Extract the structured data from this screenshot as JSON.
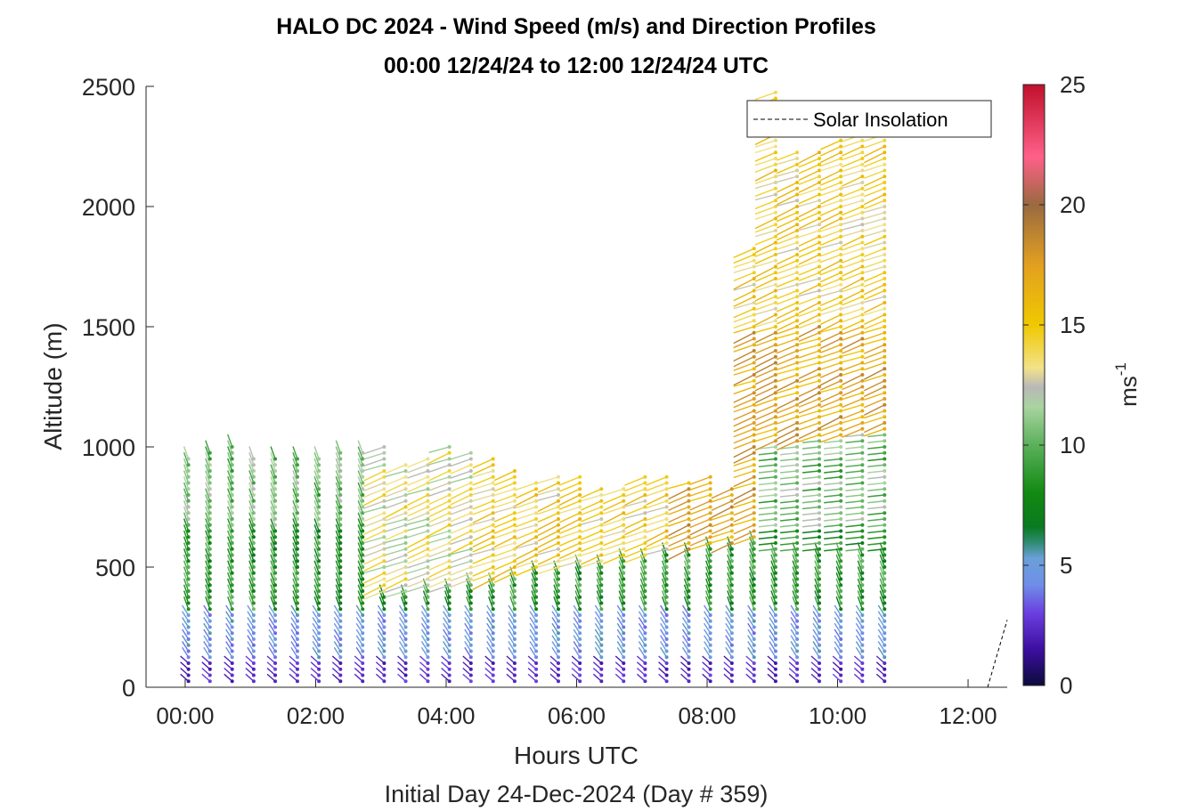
{
  "chart_data": {
    "type": "wind-barb-profile",
    "title_line1": "HALO DC 2024 - Wind Speed (m/s) and Direction Profiles",
    "title_line2": "00:00 12/24/24 to 12:00 12/24/24  UTC",
    "xlabel": "Hours UTC",
    "xlabel2": "Initial Day 24-Dec-2024 (Day # 359)",
    "ylabel": "Altitude (m)",
    "x_unit": "hours",
    "xlim": [
      -0.6,
      12.6
    ],
    "ylim": [
      0,
      2500
    ],
    "x_ticks": [
      0,
      2,
      4,
      6,
      8,
      10,
      12
    ],
    "x_tick_labels": [
      "00:00",
      "02:00",
      "04:00",
      "06:00",
      "08:00",
      "10:00",
      "12:00"
    ],
    "y_ticks": [
      0,
      500,
      1000,
      1500,
      2000,
      2500
    ],
    "y_tick_labels": [
      "0",
      "500",
      "1000",
      "1500",
      "2000",
      "2500"
    ],
    "colorbar": {
      "label_base": "ms",
      "label_exp": "-1",
      "range": [
        0,
        25
      ],
      "ticks": [
        0,
        5,
        10,
        15,
        20,
        25
      ],
      "tick_labels": [
        "0",
        "5",
        "10",
        "15",
        "20",
        "25"
      ],
      "stops": [
        {
          "v": 0,
          "c": "#0b0b3c"
        },
        {
          "v": 1.5,
          "c": "#3d0fa0"
        },
        {
          "v": 3,
          "c": "#6a3ee0"
        },
        {
          "v": 4.2,
          "c": "#6f8fe8"
        },
        {
          "v": 5.3,
          "c": "#6aa0d8"
        },
        {
          "v": 6,
          "c": "#2a8a6a"
        },
        {
          "v": 6.6,
          "c": "#0a7a20"
        },
        {
          "v": 8,
          "c": "#118a11"
        },
        {
          "v": 10,
          "c": "#5bb05b"
        },
        {
          "v": 11.6,
          "c": "#a9d4a0"
        },
        {
          "v": 12.4,
          "c": "#b8b8b8"
        },
        {
          "v": 13.2,
          "c": "#f2e28a"
        },
        {
          "v": 15,
          "c": "#f0c800"
        },
        {
          "v": 17.5,
          "c": "#e2a020"
        },
        {
          "v": 20,
          "c": "#9a6a40"
        },
        {
          "v": 22,
          "c": "#ff6088"
        },
        {
          "v": 25,
          "c": "#c0102c"
        }
      ]
    },
    "legend": {
      "label": "Solar Insolation",
      "placement": "top-right",
      "line_style": "dashed"
    },
    "insolation": {
      "x": [
        -0.6,
        12.3,
        12.6
      ],
      "y": [
        0,
        0,
        280
      ]
    },
    "profile_times": [
      0.05,
      0.38,
      0.72,
      1.05,
      1.38,
      1.72,
      2.05,
      2.38,
      2.72,
      3.05,
      3.38,
      3.72,
      4.05,
      4.38,
      4.72,
      5.05,
      5.38,
      5.72,
      6.05,
      6.38,
      6.72,
      7.05,
      7.38,
      7.72,
      8.05,
      8.38,
      8.72,
      9.05,
      9.38,
      9.72,
      10.05,
      10.38,
      10.72
    ],
    "profile_tops": [
      960,
      990,
      1000,
      970,
      960,
      970,
      960,
      980,
      990,
      1000,
      940,
      970,
      1000,
      980,
      950,
      910,
      860,
      880,
      880,
      830,
      840,
      880,
      880,
      860,
      890,
      830,
      1840,
      2480,
      2240,
      2240,
      2280,
      2300,
      2300
    ],
    "altitude_step_m": 25,
    "upper_layer": {
      "base_start_m": 380,
      "base_rise_per_hour": 40,
      "mid_time": 4.5,
      "peak_time": 7.5,
      "falloff_after_time": 8.8,
      "speed_low": 13,
      "speed_mid": 14.5,
      "speed_high": 17
    },
    "lower_layer": {
      "calm_top_m": 120,
      "light_top_m": 320,
      "speed_calm": 2.4,
      "speed_light": 4.6,
      "speed_moderate": 8.5
    }
  }
}
